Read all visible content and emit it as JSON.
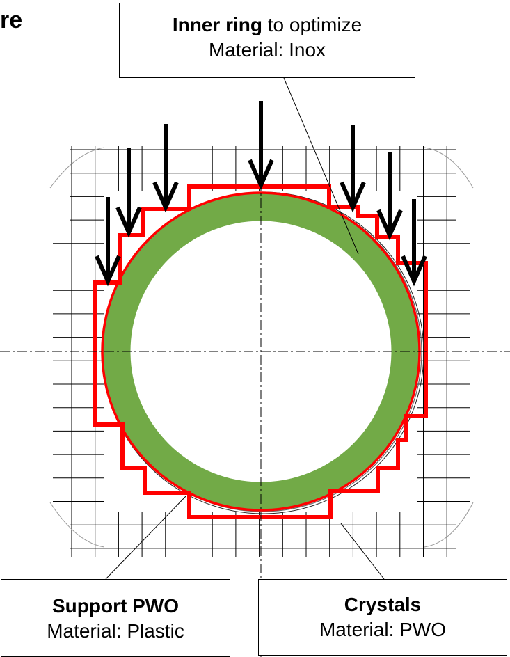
{
  "title_fragment": "re",
  "callouts": {
    "inner_ring": {
      "bold": "Inner ring",
      "rest": " to optimize",
      "material": "Material: Inox"
    },
    "support": {
      "bold": "Support PWO",
      "material": "Material: Plastic"
    },
    "crystals": {
      "bold": "Crystals",
      "material": "Material: PWO"
    }
  },
  "colors": {
    "ring": "#72aa47",
    "support_outline": "#ff0000",
    "grid": "#000000",
    "arrows": "#000000"
  }
}
